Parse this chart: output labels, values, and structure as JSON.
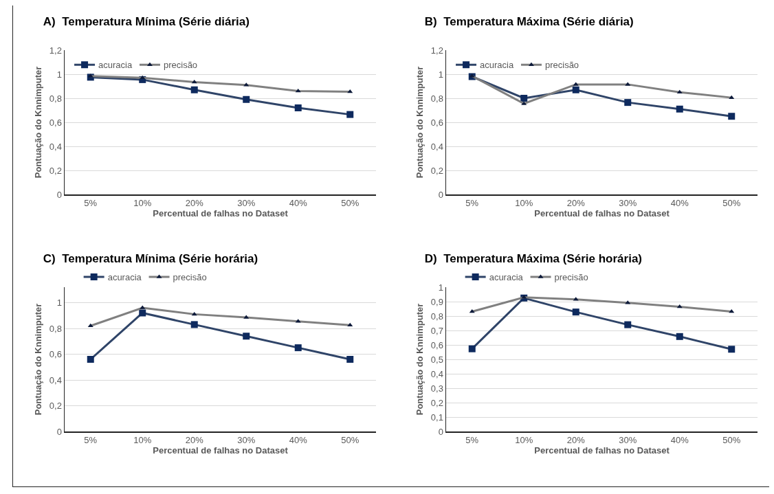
{
  "chart_data": [
    {
      "type": "line",
      "title": "A)  Temperatura Mínima (Série diária)",
      "xlabel": "Percentual de falhas no Dataset",
      "ylabel": "Pontuação do Knnimputer",
      "categories": [
        "5%",
        "10%",
        "20%",
        "30%",
        "40%",
        "50%"
      ],
      "series": [
        {
          "name": "acuracia",
          "color": "#2f4468",
          "marker": "square",
          "values": [
            0.975,
            0.955,
            0.87,
            0.79,
            0.72,
            0.665
          ]
        },
        {
          "name": "precisão",
          "color": "#808080",
          "marker": "triangle",
          "values": [
            0.985,
            0.97,
            0.935,
            0.91,
            0.86,
            0.855
          ]
        }
      ],
      "ylim": [
        0,
        1.2
      ],
      "yticks": [
        {
          "value": 0,
          "label": "0"
        },
        {
          "value": 0.2,
          "label": "0,2"
        },
        {
          "value": 0.4,
          "label": "0,4"
        },
        {
          "value": 0.6,
          "label": "0,6"
        },
        {
          "value": 0.8,
          "label": "0,8"
        },
        {
          "value": 1,
          "label": "1"
        },
        {
          "value": 1.2,
          "label": "1,2"
        }
      ],
      "grid": "y",
      "legend": "top left"
    },
    {
      "type": "line",
      "title": "B)  Temperatura Máxima (Série diária)",
      "xlabel": "Percentual de falhas no Dataset",
      "ylabel": "Pontuação do Knnimputer",
      "categories": [
        "5%",
        "10%",
        "20%",
        "30%",
        "40%",
        "50%"
      ],
      "series": [
        {
          "name": "acuracia",
          "color": "#2f4468",
          "marker": "square",
          "values": [
            0.98,
            0.8,
            0.87,
            0.765,
            0.71,
            0.65
          ]
        },
        {
          "name": "precisão",
          "color": "#808080",
          "marker": "triangle",
          "values": [
            0.985,
            0.755,
            0.915,
            0.915,
            0.85,
            0.805
          ]
        }
      ],
      "ylim": [
        0,
        1.2
      ],
      "yticks": [
        {
          "value": 0,
          "label": "0"
        },
        {
          "value": 0.2,
          "label": "0,2"
        },
        {
          "value": 0.4,
          "label": "0,4"
        },
        {
          "value": 0.6,
          "label": "0,6"
        },
        {
          "value": 0.8,
          "label": "0,8"
        },
        {
          "value": 1,
          "label": "1"
        },
        {
          "value": 1.2,
          "label": "1,2"
        }
      ],
      "grid": "y",
      "legend": "top left"
    },
    {
      "type": "line",
      "title": "C)  Temperatura Mínima (Série horária)",
      "xlabel": "Percentual de falhas no Dataset",
      "ylabel": "Pontuação do Knnimputer",
      "categories": [
        "5%",
        "10%",
        "20%",
        "30%",
        "40%",
        "50%"
      ],
      "series": [
        {
          "name": "acuracia",
          "color": "#2f4468",
          "marker": "square",
          "values": [
            0.56,
            0.92,
            0.83,
            0.74,
            0.65,
            0.56
          ]
        },
        {
          "name": "precisão",
          "color": "#808080",
          "marker": "triangle",
          "values": [
            0.82,
            0.96,
            0.91,
            0.885,
            0.855,
            0.825
          ]
        }
      ],
      "ylim": [
        0,
        1.12
      ],
      "yticks": [
        {
          "value": 0,
          "label": "0"
        },
        {
          "value": 0.2,
          "label": "0,2"
        },
        {
          "value": 0.4,
          "label": "0,4"
        },
        {
          "value": 0.6,
          "label": "0,6"
        },
        {
          "value": 0.8,
          "label": "0,8"
        },
        {
          "value": 1,
          "label": "1"
        }
      ],
      "grid": "y",
      "legend": "top"
    },
    {
      "type": "line",
      "title": "D)  Temperatura Máxima (Série horária)",
      "xlabel": "Percentual de falhas no Dataset",
      "ylabel": "Pontuação do Knnimputer",
      "categories": [
        "5%",
        "10%",
        "20%",
        "30%",
        "40%",
        "50%"
      ],
      "series": [
        {
          "name": "acuracia",
          "color": "#2f4468",
          "marker": "square",
          "values": [
            0.573,
            0.925,
            0.828,
            0.74,
            0.658,
            0.57
          ]
        },
        {
          "name": "precisão",
          "color": "#808080",
          "marker": "triangle",
          "values": [
            0.831,
            0.93,
            0.915,
            0.892,
            0.864,
            0.831
          ]
        }
      ],
      "ylim": [
        0,
        1
      ],
      "yticks": [
        {
          "value": 0,
          "label": "0"
        },
        {
          "value": 0.1,
          "label": "0,1"
        },
        {
          "value": 0.2,
          "label": "0,2"
        },
        {
          "value": 0.3,
          "label": "0,3"
        },
        {
          "value": 0.4,
          "label": "0,4"
        },
        {
          "value": 0.5,
          "label": "0,5"
        },
        {
          "value": 0.6,
          "label": "0,6"
        },
        {
          "value": 0.7,
          "label": "0,7"
        },
        {
          "value": 0.8,
          "label": "0,8"
        },
        {
          "value": 0.9,
          "label": "0,9"
        },
        {
          "value": 1,
          "label": "1"
        }
      ],
      "grid": "y",
      "legend": "top"
    }
  ]
}
